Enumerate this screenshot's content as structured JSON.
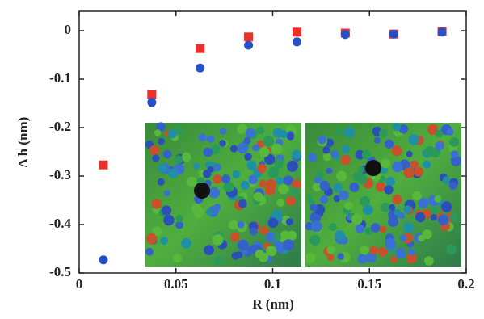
{
  "chart_data": {
    "type": "scatter",
    "x_label": "R (nm)",
    "y_label": "Δ h (nm)",
    "xlim": [
      0,
      0.2
    ],
    "xticks": [
      0,
      0.05,
      0.1,
      0.15,
      0.2
    ],
    "ylim": [
      -0.5,
      0.04
    ],
    "yticks": [
      -0.5,
      -0.4,
      -0.3,
      -0.2,
      -0.1,
      0
    ],
    "series": [
      {
        "color": "#e8312a",
        "marker": "square",
        "x": [
          0.0125,
          0.0375,
          0.0625,
          0.0875,
          0.1125,
          0.1375,
          0.1625,
          0.1875
        ],
        "values": [
          -0.277,
          -0.132,
          -0.037,
          -0.013,
          -0.003,
          -0.005,
          -0.007,
          -0.002
        ]
      },
      {
        "color": "#2550c8",
        "marker": "circle",
        "x": [
          0.0125,
          0.0375,
          0.0625,
          0.0875,
          0.1125,
          0.1375,
          0.1625,
          0.1875
        ],
        "values": [
          -0.473,
          -0.148,
          -0.077,
          -0.03,
          -0.023,
          -0.008,
          -0.007,
          -0.003
        ]
      }
    ]
  }
}
